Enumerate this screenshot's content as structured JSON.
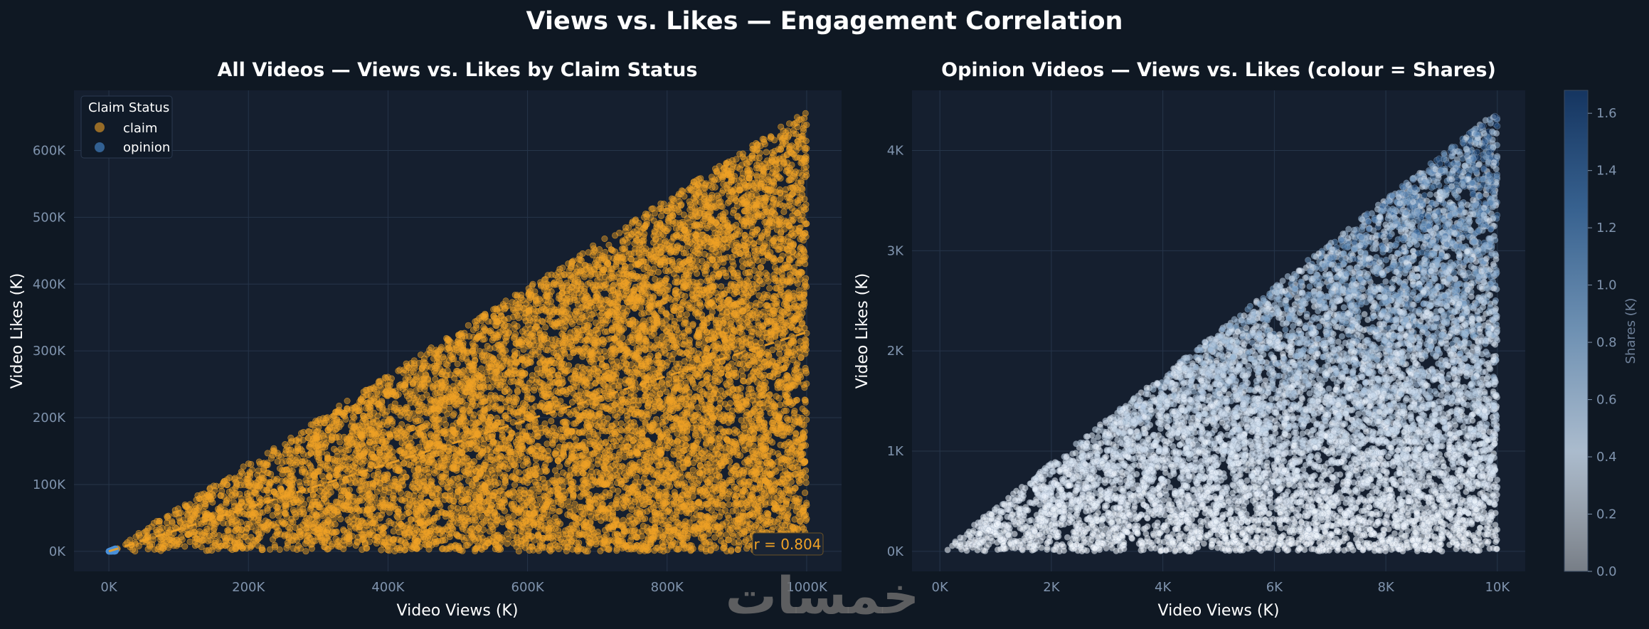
{
  "figure": {
    "suptitle": "Views vs. Likes — Engagement Correlation",
    "watermark": "خمسات"
  },
  "chart_data": [
    {
      "type": "scatter",
      "title": "All Videos — Views vs. Likes by Claim Status",
      "xlabel": "Video Views (K)",
      "ylabel": "Video Likes (K)",
      "xlim": [
        -50,
        1050
      ],
      "ylim": [
        -30,
        690
      ],
      "xticks": [
        0,
        200,
        400,
        600,
        800,
        1000
      ],
      "xtick_labels": [
        "0K",
        "200K",
        "400K",
        "600K",
        "800K",
        "1000K"
      ],
      "yticks": [
        0,
        100,
        200,
        300,
        400,
        500,
        600
      ],
      "ytick_labels": [
        "0K",
        "100K",
        "200K",
        "300K",
        "400K",
        "500K",
        "600K"
      ],
      "grid": true,
      "legend": {
        "title": "Claim Status",
        "placement": "upper-left",
        "entries": [
          {
            "label": "claim",
            "color": "#f0a226"
          },
          {
            "label": "opinion",
            "color": "#4a90d9"
          }
        ]
      },
      "series": [
        {
          "name": "claim",
          "color": "#f0a226",
          "x_range": [
            0,
            1000
          ],
          "likes_ratio_range": [
            0,
            0.66
          ],
          "point_count": 9600
        },
        {
          "name": "opinion",
          "color": "#4a90d9",
          "x_range": [
            0,
            10
          ],
          "likes_ratio_range": [
            0,
            0.44
          ],
          "point_count": 400
        }
      ],
      "trendline": {
        "x": [
          0,
          1000
        ],
        "y": [
          0,
          328
        ],
        "style": "dashed",
        "color": "#f0a226"
      },
      "annotation": {
        "text": "r = 0.804",
        "placement": "lower-right"
      }
    },
    {
      "type": "scatter",
      "title": "Opinion Videos — Views vs. Likes (colour = Shares)",
      "xlabel": "Video Views (K)",
      "ylabel": "Video Likes (K)",
      "xlim": [
        -0.5,
        10.5
      ],
      "ylim": [
        -0.2,
        4.6
      ],
      "xticks": [
        0,
        2,
        4,
        6,
        8,
        10
      ],
      "xtick_labels": [
        "0K",
        "2K",
        "4K",
        "6K",
        "8K",
        "10K"
      ],
      "yticks": [
        0,
        1,
        2,
        3,
        4
      ],
      "ytick_labels": [
        "0K",
        "1K",
        "2K",
        "3K",
        "4K"
      ],
      "grid": true,
      "series": [
        {
          "x_range": [
            0,
            10
          ],
          "likes_ratio_range": [
            0,
            0.44
          ],
          "point_count": 9000
        }
      ],
      "colorbar": {
        "label": "Shares (K)",
        "range": [
          0,
          1.68
        ],
        "ticks": [
          0.0,
          0.2,
          0.4,
          0.6,
          0.8,
          1.0,
          1.2,
          1.4,
          1.6
        ],
        "tick_labels": [
          "0.0",
          "0.2",
          "0.4",
          "0.6",
          "0.8",
          "1.0",
          "1.2",
          "1.4",
          "1.6"
        ],
        "colormap": [
          "#f5f9ff",
          "#c6d8eb",
          "#7fa6cc",
          "#3f6fa3",
          "#163a6b"
        ]
      }
    }
  ]
}
